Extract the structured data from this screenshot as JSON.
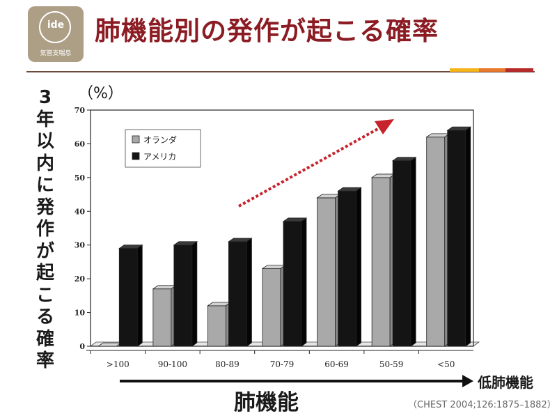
{
  "logo": {
    "word": "ide",
    "text": "気管支喘息"
  },
  "title": "肺機能別の発作が起こる確率",
  "accent_colors": [
    "#f5b51c",
    "#e9792b",
    "#b72a2a"
  ],
  "y_axis_label": "3年以内に発作が起こる確率",
  "y_unit": "（%）",
  "x_axis_title": "肺機能",
  "x_arrow_label": "低肺機能",
  "citation": "（CHEST 2004;126:1875–1882）",
  "chart_data": {
    "type": "bar",
    "categories": [
      ">100",
      "90-100",
      "80-89",
      "70-79",
      "60-69",
      "50-59",
      "<50"
    ],
    "series": [
      {
        "name": "オランダ",
        "values": [
          0,
          17,
          12,
          23,
          44,
          50,
          62
        ],
        "color": "#a9a9a9"
      },
      {
        "name": "アメリカ",
        "values": [
          29,
          30,
          31,
          37,
          46,
          55,
          64
        ],
        "color": "#141414"
      }
    ],
    "ylim": [
      0,
      70
    ],
    "yticks": [
      0,
      10,
      20,
      30,
      40,
      50,
      60,
      70
    ],
    "grid": false,
    "legend": "top-left",
    "trend_arrow_color": "#c8222c"
  }
}
